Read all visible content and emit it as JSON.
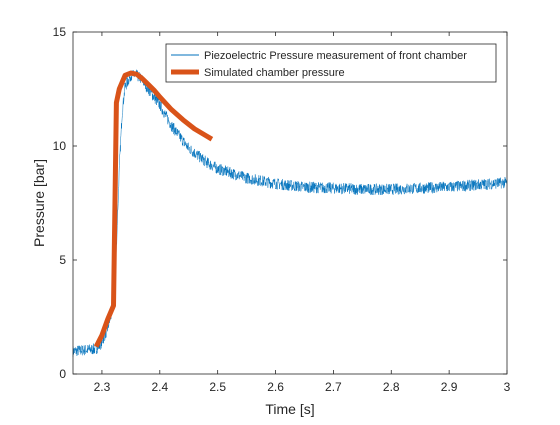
{
  "chart_data": {
    "type": "line",
    "title": "",
    "xlabel": "Time [s]",
    "ylabel": "Pressure [bar]",
    "xlim": [
      2.25,
      3.0
    ],
    "ylim": [
      0,
      15
    ],
    "xticks": [
      2.3,
      2.4,
      2.5,
      2.6,
      2.7,
      2.8,
      2.9,
      3.0
    ],
    "xtick_labels": [
      "2.3",
      "2.4",
      "2.5",
      "2.6",
      "2.7",
      "2.8",
      "2.9",
      "3"
    ],
    "yticks": [
      0,
      5,
      10,
      15
    ],
    "ytick_labels": [
      "0",
      "5",
      "10",
      "15"
    ],
    "grid": false,
    "legend_position": "top-right",
    "series": [
      {
        "name": "Piezoelectric Pressure measurement of front chamber",
        "color": "#0072BD",
        "style": "thin noisy line",
        "noise_amplitude": 0.25,
        "x": [
          2.25,
          2.27,
          2.29,
          2.3,
          2.31,
          2.32,
          2.325,
          2.33,
          2.335,
          2.34,
          2.35,
          2.36,
          2.37,
          2.38,
          2.4,
          2.42,
          2.45,
          2.48,
          2.5,
          2.55,
          2.6,
          2.65,
          2.7,
          2.75,
          2.8,
          2.85,
          2.9,
          2.95,
          3.0
        ],
        "values": [
          1.0,
          1.05,
          1.1,
          1.4,
          2.0,
          3.0,
          5.5,
          9.0,
          11.5,
          12.6,
          13.1,
          13.1,
          12.9,
          12.5,
          11.8,
          10.9,
          9.9,
          9.3,
          9.0,
          8.6,
          8.35,
          8.2,
          8.15,
          8.1,
          8.1,
          8.15,
          8.2,
          8.3,
          8.4
        ]
      },
      {
        "name": "Simulated chamber pressure",
        "color": "#D95319",
        "style": "thick line",
        "x": [
          2.29,
          2.3,
          2.31,
          2.32,
          2.325,
          2.33,
          2.34,
          2.35,
          2.36,
          2.37,
          2.38,
          2.39,
          2.4,
          2.42,
          2.44,
          2.46,
          2.48,
          2.49
        ],
        "values": [
          1.2,
          1.7,
          2.4,
          3.0,
          11.9,
          12.5,
          13.1,
          13.2,
          13.15,
          12.95,
          12.7,
          12.45,
          12.15,
          11.6,
          11.15,
          10.75,
          10.45,
          10.3
        ]
      }
    ]
  }
}
